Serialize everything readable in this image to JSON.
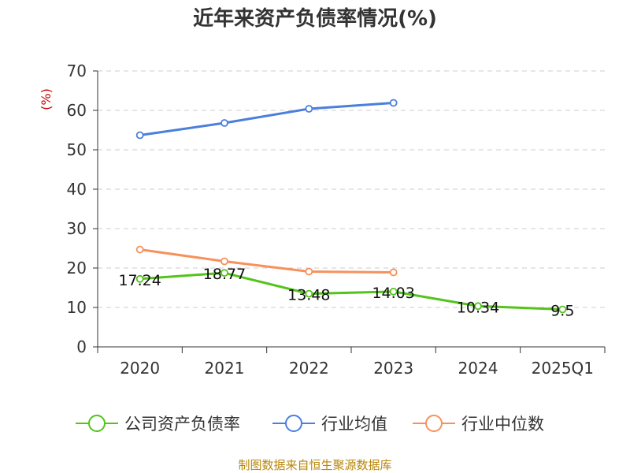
{
  "chart_data": {
    "type": "line",
    "title": "近年来资产负债率情况(%)",
    "ylabel": "(%)",
    "xlabel": "",
    "ylim": [
      0,
      70
    ],
    "yticks": [
      0,
      10,
      20,
      30,
      40,
      50,
      60,
      70
    ],
    "categories": [
      "2020",
      "2021",
      "2022",
      "2023",
      "2024",
      "2025Q1"
    ],
    "grid": "horizontal-dashed",
    "legend_position": "bottom",
    "series": [
      {
        "name": "公司资产负债率",
        "color": "#52c41a",
        "values": [
          17.24,
          18.77,
          13.48,
          14.03,
          10.34,
          9.5
        ],
        "show_labels": true
      },
      {
        "name": "行业均值",
        "color": "#4a7fdb",
        "values": [
          53.7,
          56.8,
          60.4,
          61.9,
          null,
          null
        ],
        "show_labels": false
      },
      {
        "name": "行业中位数",
        "color": "#f7915c",
        "values": [
          24.7,
          21.7,
          19.1,
          18.9,
          null,
          null
        ],
        "show_labels": false
      }
    ]
  },
  "source_text": "制图数据来自恒生聚源数据库"
}
